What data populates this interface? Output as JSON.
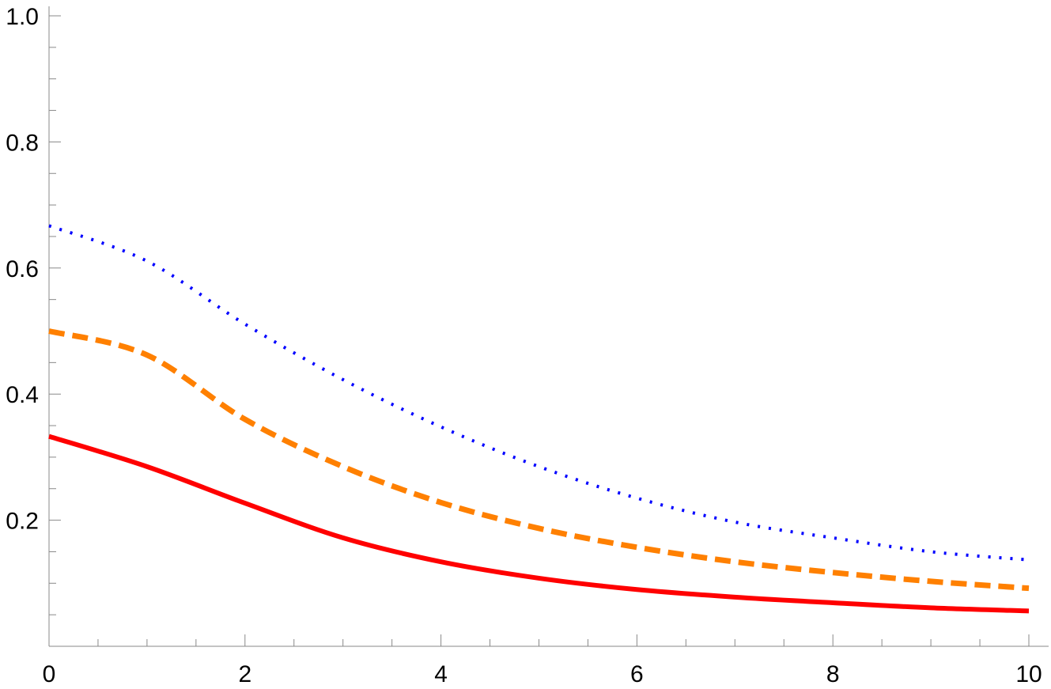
{
  "chart_data": {
    "type": "line",
    "title": "",
    "xlabel": "",
    "ylabel": "",
    "xlim": [
      0,
      10
    ],
    "ylim": [
      0,
      1.0
    ],
    "grid": false,
    "legend": "none",
    "x_ticks": [
      "0",
      "2",
      "4",
      "6",
      "8",
      "10"
    ],
    "y_ticks": [
      "0.2",
      "0.4",
      "0.6",
      "0.8",
      "1.0"
    ],
    "x": [
      0,
      1,
      2,
      3,
      4,
      5,
      6,
      7,
      8,
      9,
      10
    ],
    "series": [
      {
        "color": "#0000ff",
        "style": "dotted",
        "values": [
          0.667,
          0.611,
          0.511,
          0.423,
          0.348,
          0.285,
          0.235,
          0.197,
          0.172,
          0.15,
          0.137
        ]
      },
      {
        "color": "#ff8000",
        "style": "dashed",
        "values": [
          0.5,
          0.462,
          0.36,
          0.285,
          0.228,
          0.187,
          0.157,
          0.134,
          0.117,
          0.103,
          0.092
        ]
      },
      {
        "color": "#ff0000",
        "style": "solid",
        "values": [
          0.333,
          0.285,
          0.227,
          0.172,
          0.134,
          0.108,
          0.09,
          0.078,
          0.069,
          0.061,
          0.056
        ]
      }
    ]
  }
}
